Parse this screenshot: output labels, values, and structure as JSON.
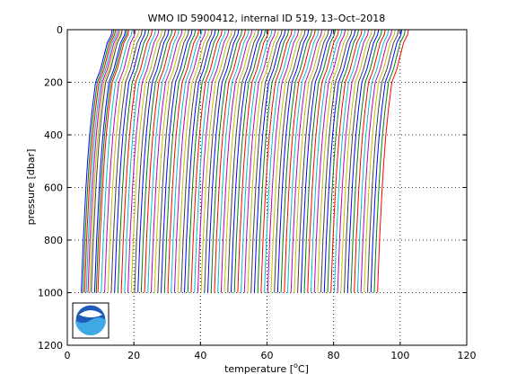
{
  "chart_data": {
    "type": "line",
    "title": "WMO ID 5900412, internal ID 519, 13–Oct–2018",
    "xlabel_prefix": "temperature [",
    "xlabel_sup": "o",
    "xlabel_suffix": "C]",
    "ylabel": "pressure [dbar]",
    "xlim": [
      0,
      120
    ],
    "ylim": [
      1200,
      0
    ],
    "y_reversed": true,
    "grid": true,
    "grid_style": "dotted",
    "xticks": [
      0,
      20,
      40,
      60,
      80,
      100,
      120
    ],
    "yticks": [
      0,
      200,
      400,
      600,
      800,
      1000,
      1200
    ],
    "xtick_labels": [
      "0",
      "20",
      "40",
      "60",
      "80",
      "100",
      "120"
    ],
    "ytick_labels": [
      "0",
      "200",
      "400",
      "600",
      "800",
      "1000",
      "1200"
    ],
    "series_note": "waterfall of successive temperature profiles, each offset in temperature; start temperature (at 0 dbar) per profile",
    "profile_start_temps": [
      13.5,
      14.0,
      14.5,
      15.0,
      15.5,
      16.0,
      16.5,
      17.5,
      18.0,
      18.5,
      19.5,
      20.5,
      21.5,
      22.5,
      23.5,
      24.5,
      25.5,
      26.5,
      27.5,
      28.5,
      29.5,
      30.5,
      31.5,
      32.5,
      33.5,
      34.5,
      35.5,
      36.5,
      37.5,
      38.5,
      39.5,
      40.5,
      41.5,
      42.5,
      43.5,
      44.5,
      45.5,
      46.5,
      47.5,
      48.5,
      49.5,
      50.5,
      51.5,
      52.5,
      53.5,
      54.5,
      55.5,
      56.5,
      57.5,
      58.5,
      59.5,
      60.5,
      61.5,
      62.5,
      63.5,
      64.5,
      65.5,
      66.5,
      67.5,
      68.5,
      69.5,
      70.5,
      71.5,
      72.5,
      73.5,
      74.5,
      75.5,
      76.5,
      77.5,
      78.5,
      79.5,
      80.5,
      81.5,
      82.5,
      83.5,
      84.5,
      85.5,
      86.5,
      87.5,
      88.5,
      89.5,
      90.5,
      91.5,
      92.5,
      93.5,
      94.5,
      95.5,
      96.5,
      97.5,
      98.5,
      99.5,
      100.5,
      101.5,
      102.5
    ],
    "profile_shape": {
      "pressure": [
        0,
        20,
        50,
        100,
        150,
        200,
        300,
        400,
        500,
        600,
        700,
        800,
        900,
        1000
      ],
      "temperature_offset": [
        0,
        -0.3,
        -1.5,
        -2.5,
        -3.5,
        -5.0,
        -6.0,
        -6.8,
        -7.4,
        -7.9,
        -8.3,
        -8.7,
        -9.0,
        -9.3
      ]
    },
    "colors": [
      "#0000ff",
      "#008000",
      "#ff0000",
      "#00bfbf",
      "#bf00bf",
      "#bfbf00",
      "#404040"
    ]
  },
  "logo": {
    "text": "NOAA",
    "name": "noaa-logo"
  }
}
